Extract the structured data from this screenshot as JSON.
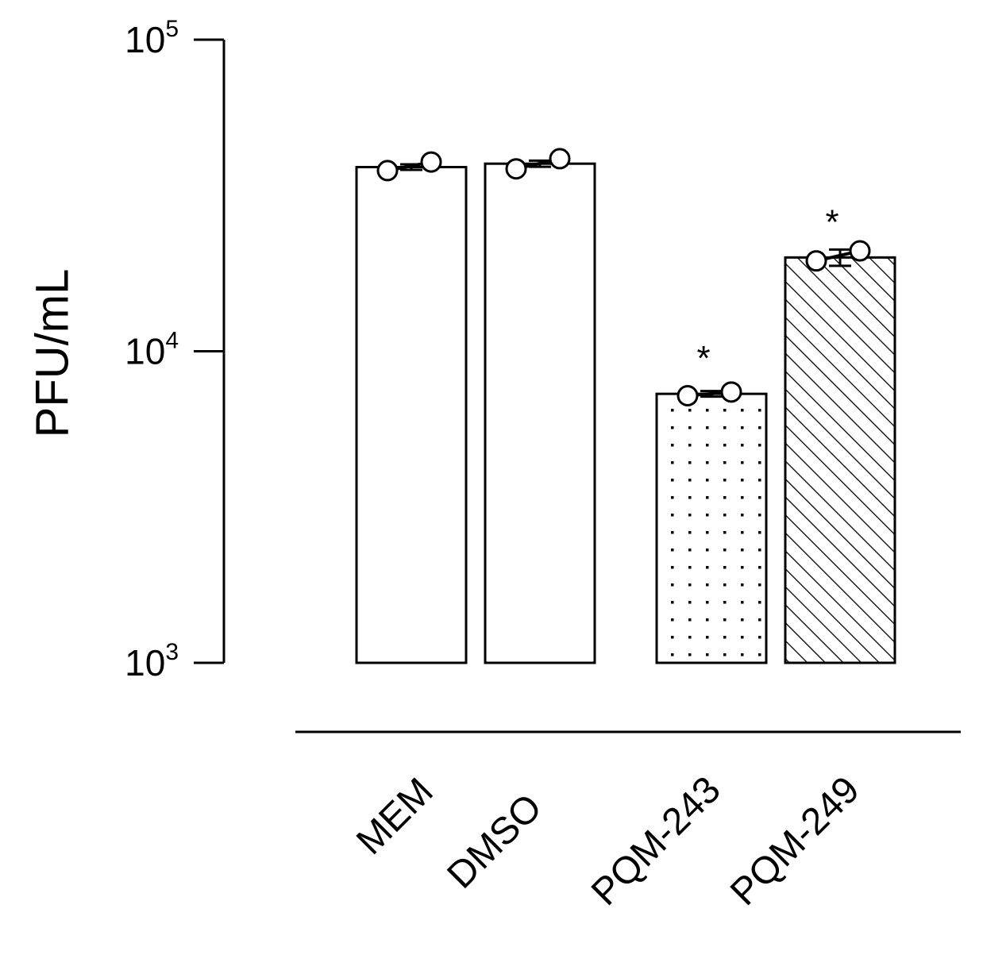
{
  "chart_data": {
    "type": "bar",
    "ylabel": "PFU/mL",
    "yscale": "log",
    "ylim": [
      1000,
      100000
    ],
    "yticks": [
      {
        "value": 100000,
        "base": "10",
        "exp": "5"
      },
      {
        "value": 10000,
        "base": "10",
        "exp": "4"
      },
      {
        "value": 1000,
        "base": "10",
        "exp": "3"
      }
    ],
    "categories": [
      "MEM",
      "DMSO",
      "PQM-243",
      "PQM-249"
    ],
    "values": [
      39000,
      40000,
      7300,
      20000
    ],
    "points": [
      [
        38000,
        40500
      ],
      [
        38500,
        41500
      ],
      [
        7200,
        7400
      ],
      [
        19500,
        21000
      ]
    ],
    "errors": [
      800,
      900,
      150,
      1200
    ],
    "fills": [
      "none",
      "none",
      "dots",
      "hatch"
    ],
    "significance": [
      "",
      "",
      "*",
      "*"
    ]
  }
}
